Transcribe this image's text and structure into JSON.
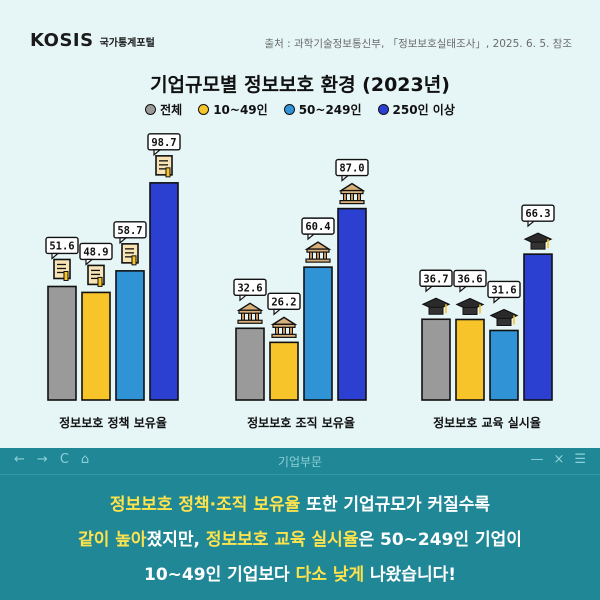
{
  "header": {
    "logo_text": "KOSIS",
    "logo_sub": "국가통계포털",
    "source": "출처 : 과학기술정보통신부, 「정보보호실태조사」, 2025. 6. 5. 참조"
  },
  "chart_data": {
    "type": "bar",
    "title": "기업규모별 정보보호 환경 (2023년)",
    "categories": [
      "정보보호 정책 보유율",
      "정보보호 조직 보유율",
      "정보보호 교육 실시율"
    ],
    "series": [
      {
        "name": "전체",
        "values": [
          51.6,
          32.6,
          36.7
        ],
        "color": "#9a9a9a"
      },
      {
        "name": "10~49인",
        "values": [
          48.9,
          26.2,
          36.6
        ],
        "color": "#f7c42a"
      },
      {
        "name": "50~249인",
        "values": [
          58.7,
          60.4,
          31.6
        ],
        "color": "#2f93d6"
      },
      {
        "name": "250인 이상",
        "values": [
          98.7,
          87.0,
          66.3
        ],
        "color": "#2b3fd1"
      }
    ],
    "data_labels": [
      [
        "51.6",
        "48.9",
        "58.7",
        "98.7"
      ],
      [
        "32.6",
        "26.2",
        "60.4",
        "87.0"
      ],
      [
        "36.7",
        "36.6",
        "31.6",
        "66.3"
      ]
    ],
    "group_icons": [
      "document-icon",
      "bank-icon",
      "graduation-cap-icon"
    ],
    "ylim": [
      0,
      100
    ],
    "legend_position": "top-center",
    "grid": false
  },
  "browser_bar": {
    "title": "기업부문",
    "nav_icons": [
      "←",
      "→",
      "C",
      "⌂"
    ],
    "window_icons": [
      "—",
      "×",
      "☰"
    ]
  },
  "message": {
    "line1": [
      {
        "text": "정보보호 정책·조직 보유율",
        "hl": true
      },
      {
        "text": " 또한 기업규모가 커질수록",
        "hl": false
      }
    ],
    "line2": [
      {
        "text": "같이 높아",
        "hl": true
      },
      {
        "text": "졌지만, ",
        "hl": false
      },
      {
        "text": "정보보호 교육 실시율",
        "hl": true
      },
      {
        "text": "은 50~249인 기업이",
        "hl": false
      }
    ],
    "line3": [
      {
        "text": "10~49인 기업보다 ",
        "hl": false
      },
      {
        "text": "다소 낮게",
        "hl": true
      },
      {
        "text": " 나왔습니다!",
        "hl": false
      }
    ]
  }
}
